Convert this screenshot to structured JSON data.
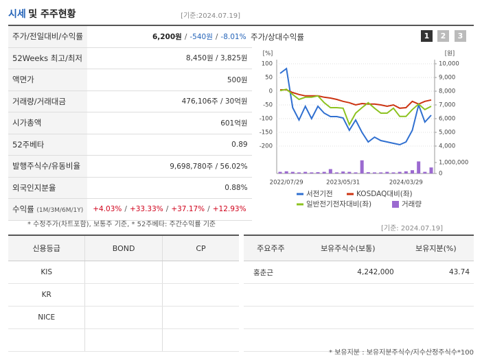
{
  "header": {
    "title_main": "시세",
    "title_rest": "및 주주현황",
    "date": "[기준:2024.07.19]"
  },
  "quote_table": {
    "rows": [
      {
        "label": "주가/전일대비/수익률",
        "value": [
          "6,200원",
          "/",
          "-540원",
          "/",
          "-8.01%"
        ]
      },
      {
        "label": "52Weeks 최고/최저",
        "value": "8,450원 / 3,825원"
      },
      {
        "label": "액면가",
        "value": "500원"
      },
      {
        "label": "거래량/거래대금",
        "value": "476,106주 / 30억원"
      },
      {
        "label": "시가총액",
        "value": "601억원"
      },
      {
        "label": "52주베타",
        "value": "0.89"
      },
      {
        "label": "발행주식수/유동비율",
        "value": "9,698,780주 / 56.02%"
      },
      {
        "label": "외국인지분율",
        "value": "0.88%"
      },
      {
        "label": "수익률",
        "label_note": "(1M/3M/6M/1Y)",
        "value": [
          "+4.03%",
          "/",
          "+33.33%",
          "/",
          "+37.17%",
          "/",
          "+12.93%"
        ]
      }
    ],
    "note": "* 수정주가(차트포함), 보통주 기준, * 52주베타: 주간수익률 기준"
  },
  "chart_panel": {
    "title": "주가/상대수익률",
    "buttons": [
      "1",
      "2",
      "3"
    ]
  },
  "chart_data": {
    "type": "line",
    "grid": true,
    "ylabel": "[%]",
    "y2label": "[원]",
    "categories": [
      null,
      "2022/07/29",
      null,
      null,
      null,
      null,
      null,
      null,
      null,
      null,
      "2023/05/31",
      null,
      null,
      null,
      null,
      null,
      null,
      null,
      null,
      null,
      "2024/03/29",
      null,
      null,
      null,
      null
    ],
    "ylim": [
      -200,
      100
    ],
    "yticks": [
      100,
      50,
      0,
      -50,
      -100,
      -150,
      -200
    ],
    "y2lim": [
      4000,
      10000
    ],
    "y2ticks": [
      {
        "value": 10000,
        "label": "10,000"
      },
      {
        "value": 9000,
        "label": "9,000"
      },
      {
        "value": 8000,
        "label": "8,000"
      },
      {
        "value": 7000,
        "label": "7,000"
      },
      {
        "value": 6000,
        "label": "6,000"
      },
      {
        "value": 5000,
        "label": "5,000"
      },
      {
        "value": 4000,
        "label": "4,000"
      }
    ],
    "series": [
      {
        "name": "서전기전",
        "color": "#2f6fd0",
        "axis": "y2",
        "values": [
          9300,
          9650,
          6800,
          5900,
          6900,
          6000,
          6900,
          6400,
          6150,
          6150,
          6050,
          5150,
          5900,
          5000,
          4300,
          4650,
          4400,
          4300,
          4200,
          4100,
          4300,
          5150,
          7000,
          5750,
          6250
        ]
      },
      {
        "name": "KOSDAQ대비(좌)",
        "color": "#cc3311",
        "values": [
          5,
          5,
          -5,
          -12,
          -17,
          -17,
          -17,
          -22,
          -25,
          -30,
          -37,
          -42,
          -50,
          -45,
          -47,
          -47,
          -50,
          -55,
          -50,
          -62,
          -60,
          -37,
          -47,
          -37,
          -32
        ]
      },
      {
        "name": "일반전기전자대비(좌)",
        "color": "#8cc21f",
        "values": [
          2,
          7,
          -12,
          -30,
          -22,
          -22,
          -17,
          -42,
          -60,
          -60,
          -62,
          -122,
          -80,
          -60,
          -42,
          -62,
          -80,
          -80,
          -62,
          -92,
          -92,
          -67,
          -47,
          -67,
          -55
        ]
      }
    ],
    "volume": {
      "name": "거래량",
      "color": "#9b6ad0",
      "ylim": [
        0,
        1000000
      ],
      "yticks": [
        {
          "value": 1000000,
          "label": "1,000,000"
        },
        0
      ],
      "values": [
        150000,
        200000,
        150000,
        100000,
        150000,
        100000,
        120000,
        150000,
        400000,
        100000,
        180000,
        150000,
        100000,
        1200000,
        120000,
        100000,
        100000,
        150000,
        100000,
        150000,
        200000,
        300000,
        1100000,
        150000,
        550000
      ]
    }
  },
  "rating_table": {
    "headers": [
      "신용등급",
      "BOND",
      "CP"
    ],
    "rows": [
      "KIS",
      "KR",
      "NICE"
    ]
  },
  "holder_table": {
    "date": "[기준: 2024.07.19]",
    "headers": [
      "주요주주",
      "보유주식수(보통)",
      "보유지분(%)"
    ],
    "rows": [
      [
        "홍춘근",
        "4,242,000",
        "43.74"
      ]
    ],
    "note": "* 보유지분 : 보유지분주식수/지수산정주식수*100"
  }
}
